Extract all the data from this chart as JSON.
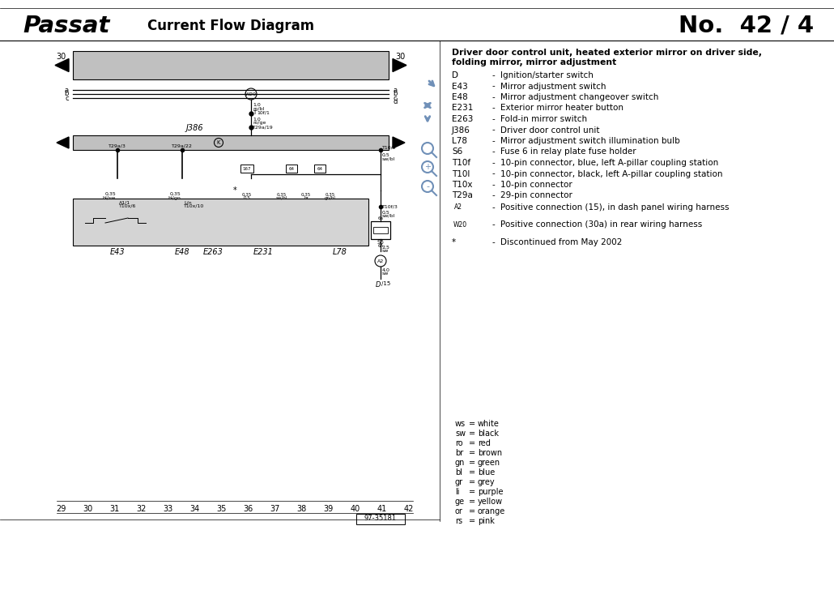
{
  "title_left": "Passat",
  "title_center": "Current Flow Diagram",
  "title_right": "No.  42 / 4",
  "bg_color": "#ffffff",
  "diagram_bg": "#c0c0c0",
  "legend_title_line1": "Driver door control unit, heated exterior mirror on driver side,",
  "legend_title_line2": "folding mirror, mirror adjustment",
  "legend_items": [
    [
      "D",
      "Ignition/starter switch"
    ],
    [
      "E43",
      "Mirror adjustment switch"
    ],
    [
      "E48",
      "Mirror adjustment changeover switch"
    ],
    [
      "E231",
      "Exterior mirror heater button"
    ],
    [
      "E263",
      "Fold-in mirror switch"
    ],
    [
      "J386",
      "Driver door control unit"
    ],
    [
      "L78",
      "Mirror adjustment switch illumination bulb"
    ],
    [
      "S6",
      "Fuse 6 in relay plate fuse holder"
    ],
    [
      "T10f",
      "10-pin connector, blue, left A-pillar coupling station"
    ],
    [
      "T10l",
      "10-pin connector, black, left A-pillar coupling station"
    ],
    [
      "T10x",
      "10-pin connector"
    ],
    [
      "T29a",
      "29-pin connector"
    ]
  ],
  "color_legend": [
    [
      "ws",
      "white"
    ],
    [
      "sw",
      "black"
    ],
    [
      "ro",
      "red"
    ],
    [
      "br",
      "brown"
    ],
    [
      "gn",
      "green"
    ],
    [
      "bl",
      "blue"
    ],
    [
      "gr",
      "grey"
    ],
    [
      "li",
      "purple"
    ],
    [
      "ge",
      "yellow"
    ],
    [
      "or",
      "orange"
    ],
    [
      "rs",
      "pink"
    ]
  ],
  "bottom_numbers": [
    "29",
    "30",
    "31",
    "32",
    "33",
    "34",
    "35",
    "36",
    "37",
    "38",
    "39",
    "40",
    "41",
    "42"
  ],
  "doc_number": "97-35181",
  "nav_color": "#7090b8",
  "arrow_fill": "#000000"
}
